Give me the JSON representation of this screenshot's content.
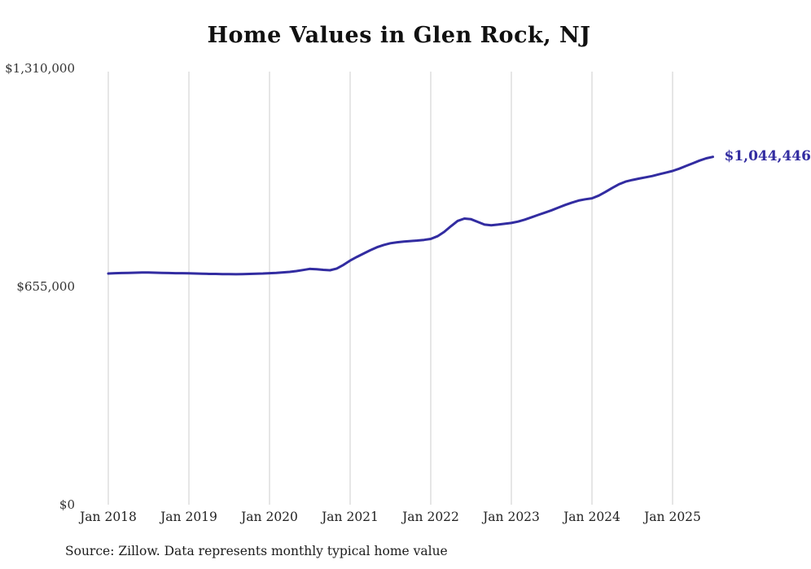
{
  "title": "Home Values in Glen Rock, NJ",
  "source_note": "Source: Zillow. Data represents monthly typical home value",
  "end_label": "$1,044,446",
  "colors": {
    "line": "#322ca1",
    "grid": "#cccccc",
    "axis_text": "#333333",
    "title_text": "#111111",
    "source_text": "#1b1b1b"
  },
  "chart_data": {
    "type": "line",
    "title": "Home Values in Glen Rock, NJ",
    "x_tick_labels": [
      "Jan 2018",
      "Jan 2019",
      "Jan 2020",
      "Jan 2021",
      "Jan 2022",
      "Jan 2023",
      "Jan 2024",
      "Jan 2025"
    ],
    "y_tick_labels": [
      "$1,310,000",
      "$655,000",
      "$0"
    ],
    "y_ticks": [
      1310000,
      655000,
      0
    ],
    "ylim": [
      0,
      1310000
    ],
    "x_start": "2018-01",
    "x_end": "2025-07",
    "grid": "vertical-only",
    "legend": "none",
    "end_value": 1044446,
    "series": [
      {
        "name": "Typical home value",
        "values": [
          694000,
          695000,
          695500,
          696000,
          696500,
          697000,
          697000,
          696500,
          696000,
          695500,
          695000,
          695000,
          694500,
          694000,
          693500,
          693000,
          693000,
          692500,
          692500,
          692000,
          692500,
          693000,
          693500,
          694000,
          695000,
          696000,
          697500,
          699000,
          701500,
          704500,
          708000,
          707000,
          705000,
          704000,
          709000,
          720000,
          733000,
          744000,
          754000,
          764000,
          773000,
          780000,
          785000,
          788000,
          790000,
          791500,
          793000,
          795000,
          798000,
          806000,
          819000,
          836000,
          852000,
          859000,
          857000,
          849000,
          841000,
          839000,
          841000,
          843500,
          846000,
          850000,
          856000,
          863000,
          870000,
          877000,
          884000,
          892000,
          900000,
          907000,
          913000,
          917000,
          920000,
          928000,
          939000,
          951000,
          962000,
          970000,
          975000,
          979000,
          983000,
          987000,
          992000,
          997000,
          1002000,
          1009000,
          1017000,
          1025000,
          1033000,
          1040000,
          1044446
        ]
      }
    ]
  }
}
